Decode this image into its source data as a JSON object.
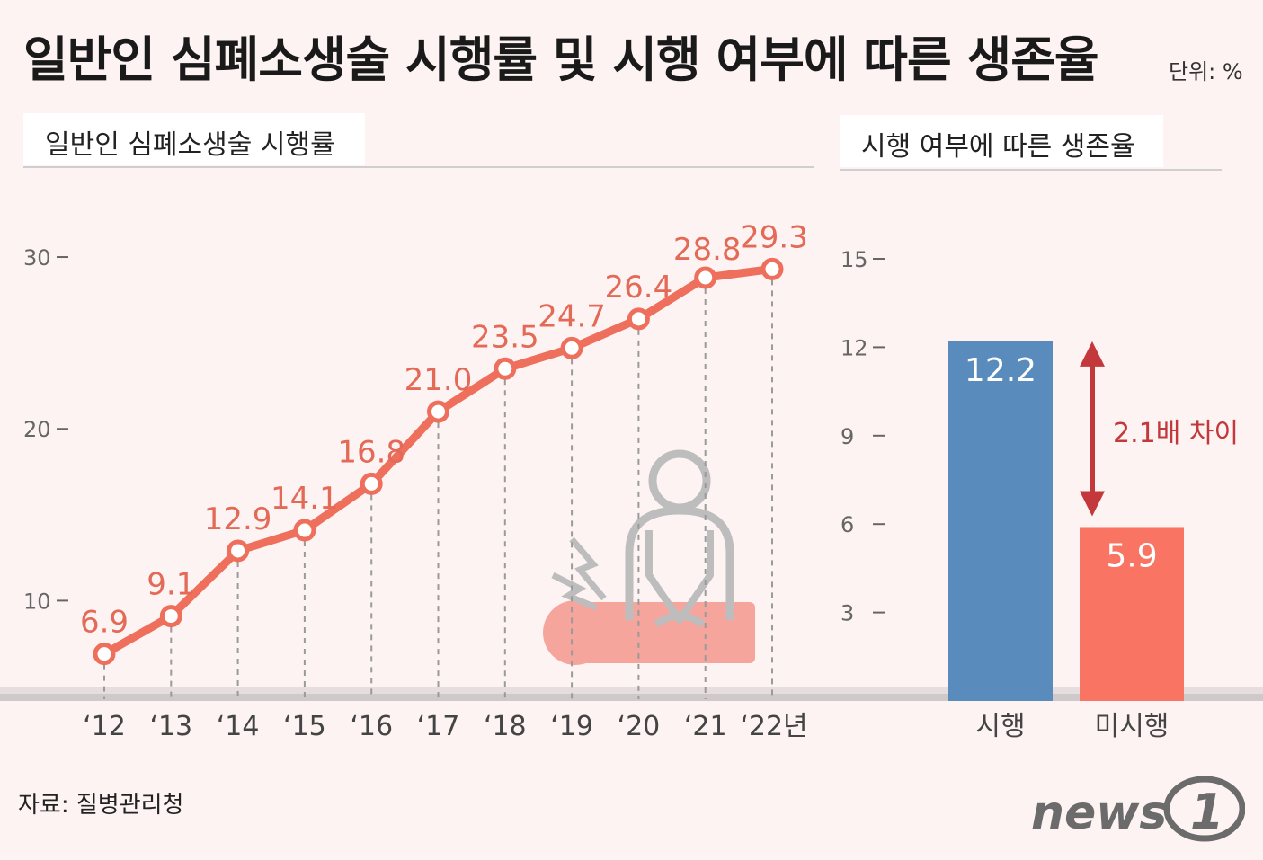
{
  "title": "일반인 심폐소생술 시행률 및 시행 여부에 따른 생존율",
  "unit": "단위: %",
  "source": "자료: 질병관리청",
  "logo_text": "news1",
  "colors": {
    "line": "#ee6f5c",
    "label_line": "#e46a58",
    "bar_performed": "#5a8bbd",
    "bar_not_performed": "#fa7463",
    "arrow": "#c2383b",
    "axis_text": "#666666",
    "icon_gray": "#bdbdbd",
    "icon_pink": "#f6a59c"
  },
  "icon": "cpr-person-icon",
  "chart_data": [
    {
      "type": "line",
      "title": "일반인 심폐소생술 시행률",
      "categories": [
        "‘12",
        "‘13",
        "‘14",
        "‘15",
        "‘16",
        "‘17",
        "‘18",
        "‘19",
        "‘20",
        "‘21",
        "‘22년"
      ],
      "values": [
        6.9,
        9.1,
        12.9,
        14.1,
        16.8,
        21.0,
        23.5,
        24.7,
        26.4,
        28.8,
        29.3
      ],
      "value_labels": [
        "6.9",
        "9.1",
        "12.9",
        "14.1",
        "16.8",
        "21.0",
        "23.5",
        "24.7",
        "26.4",
        "28.8",
        "29.3"
      ],
      "yticks": [
        "10",
        "20",
        "30"
      ],
      "ytick_values": [
        10,
        20,
        30
      ],
      "ylim": [
        5,
        34.5
      ],
      "grid": false
    },
    {
      "type": "bar",
      "title": "시행 여부에 따른 생존율",
      "categories": [
        "시행",
        "미시행"
      ],
      "values": [
        12.2,
        5.9
      ],
      "value_labels": [
        "12.2",
        "5.9"
      ],
      "yticks": [
        "3",
        "6",
        "9",
        "12",
        "15"
      ],
      "ytick_values": [
        3,
        6,
        9,
        12,
        15
      ],
      "ylim": [
        0,
        15
      ],
      "annotation": "2.1배 차이",
      "grid": false
    }
  ]
}
